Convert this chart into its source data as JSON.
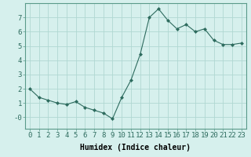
{
  "x": [
    0,
    1,
    2,
    3,
    4,
    5,
    6,
    7,
    8,
    9,
    10,
    11,
    12,
    13,
    14,
    15,
    16,
    17,
    18,
    19,
    20,
    21,
    22,
    23
  ],
  "y": [
    2.0,
    1.4,
    1.2,
    1.0,
    0.9,
    1.1,
    0.7,
    0.5,
    0.3,
    -0.1,
    1.4,
    2.6,
    4.4,
    7.0,
    7.6,
    6.8,
    6.2,
    6.5,
    6.0,
    6.2,
    5.4,
    5.1,
    5.1,
    5.2
  ],
  "line_color": "#2d6b5e",
  "marker": "D",
  "marker_size": 2.0,
  "bg_color": "#d6f0ed",
  "grid_color": "#b0d8d2",
  "xlabel": "Humidex (Indice chaleur)",
  "xlabel_fontsize": 7,
  "tick_fontsize": 6.5,
  "ylim": [
    -0.8,
    8.0
  ],
  "xlim": [
    -0.5,
    23.5
  ],
  "yticks": [
    0,
    1,
    2,
    3,
    4,
    5,
    6,
    7
  ],
  "ytick_labels": [
    "-0",
    "1",
    "2",
    "3",
    "4",
    "5",
    "6",
    "7"
  ],
  "xticks": [
    0,
    1,
    2,
    3,
    4,
    5,
    6,
    7,
    8,
    9,
    10,
    11,
    12,
    13,
    14,
    15,
    16,
    17,
    18,
    19,
    20,
    21,
    22,
    23
  ]
}
